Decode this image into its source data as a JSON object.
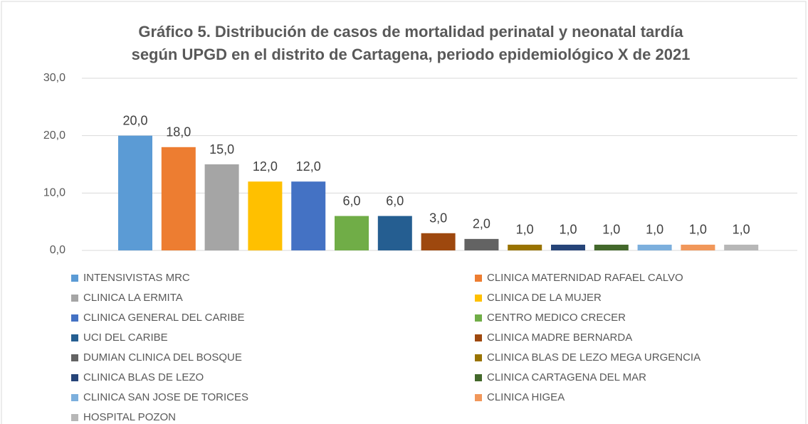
{
  "chart_data": {
    "type": "bar",
    "title": [
      "Gráfico 5. Distribución de casos de mortalidad perinatal y neonatal tardía",
      "según UPGD en el distrito de Cartagena, periodo epidemiológico X de 2021"
    ],
    "series": [
      {
        "name": "INTENSIVISTAS MRC",
        "color": "#5b9bd5",
        "values": [
          20
        ],
        "value_labels": [
          "20,0"
        ]
      },
      {
        "name": "CLINICA MATERNIDAD RAFAEL CALVO",
        "color": "#ed7d31",
        "values": [
          18
        ],
        "value_labels": [
          "18,0"
        ]
      },
      {
        "name": "CLINICA LA ERMITA",
        "color": "#a5a5a5",
        "values": [
          15
        ],
        "value_labels": [
          "15,0"
        ]
      },
      {
        "name": "CLINICA DE LA MUJER",
        "color": "#ffc000",
        "values": [
          12
        ],
        "value_labels": [
          "12,0"
        ]
      },
      {
        "name": "CLINICA GENERAL DEL CARIBE",
        "color": "#4472c4",
        "values": [
          12
        ],
        "value_labels": [
          "12,0"
        ]
      },
      {
        "name": "CENTRO MEDICO CRECER",
        "color": "#70ad47",
        "values": [
          6
        ],
        "value_labels": [
          "6,0"
        ]
      },
      {
        "name": "UCI DEL CARIBE",
        "color": "#255e91",
        "values": [
          6
        ],
        "value_labels": [
          "6,0"
        ]
      },
      {
        "name": "CLINICA MADRE BERNARDA",
        "color": "#9e480e",
        "values": [
          3
        ],
        "value_labels": [
          "3,0"
        ]
      },
      {
        "name": "DUMIAN CLINICA DEL BOSQUE",
        "color": "#636363",
        "values": [
          2
        ],
        "value_labels": [
          "2,0"
        ]
      },
      {
        "name": "CLINICA BLAS DE LEZO MEGA URGENCIA",
        "color": "#997300",
        "values": [
          1
        ],
        "value_labels": [
          "1,0"
        ]
      },
      {
        "name": "CLINICA BLAS DE LEZO",
        "color": "#264478",
        "values": [
          1
        ],
        "value_labels": [
          "1,0"
        ]
      },
      {
        "name": "CLINICA CARTAGENA DEL MAR",
        "color": "#43682b",
        "values": [
          1
        ],
        "value_labels": [
          "1,0"
        ]
      },
      {
        "name": "CLINICA SAN JOSE DE TORICES",
        "color": "#7cafdd",
        "values": [
          1
        ],
        "value_labels": [
          "1,0"
        ]
      },
      {
        "name": "CLINICA HIGEA",
        "color": "#f1975a",
        "values": [
          1
        ],
        "value_labels": [
          "1,0"
        ]
      },
      {
        "name": "HOSPITAL POZON",
        "color": "#b7b7b7",
        "values": [
          1
        ],
        "value_labels": [
          "1,0"
        ]
      }
    ],
    "ylim": [
      0,
      30
    ],
    "yticks": [
      {
        "value": 0,
        "label": "0,0"
      },
      {
        "value": 10,
        "label": "10,0"
      },
      {
        "value": 20,
        "label": "20,0"
      },
      {
        "value": 30,
        "label": "30,0"
      }
    ],
    "grid": true
  }
}
